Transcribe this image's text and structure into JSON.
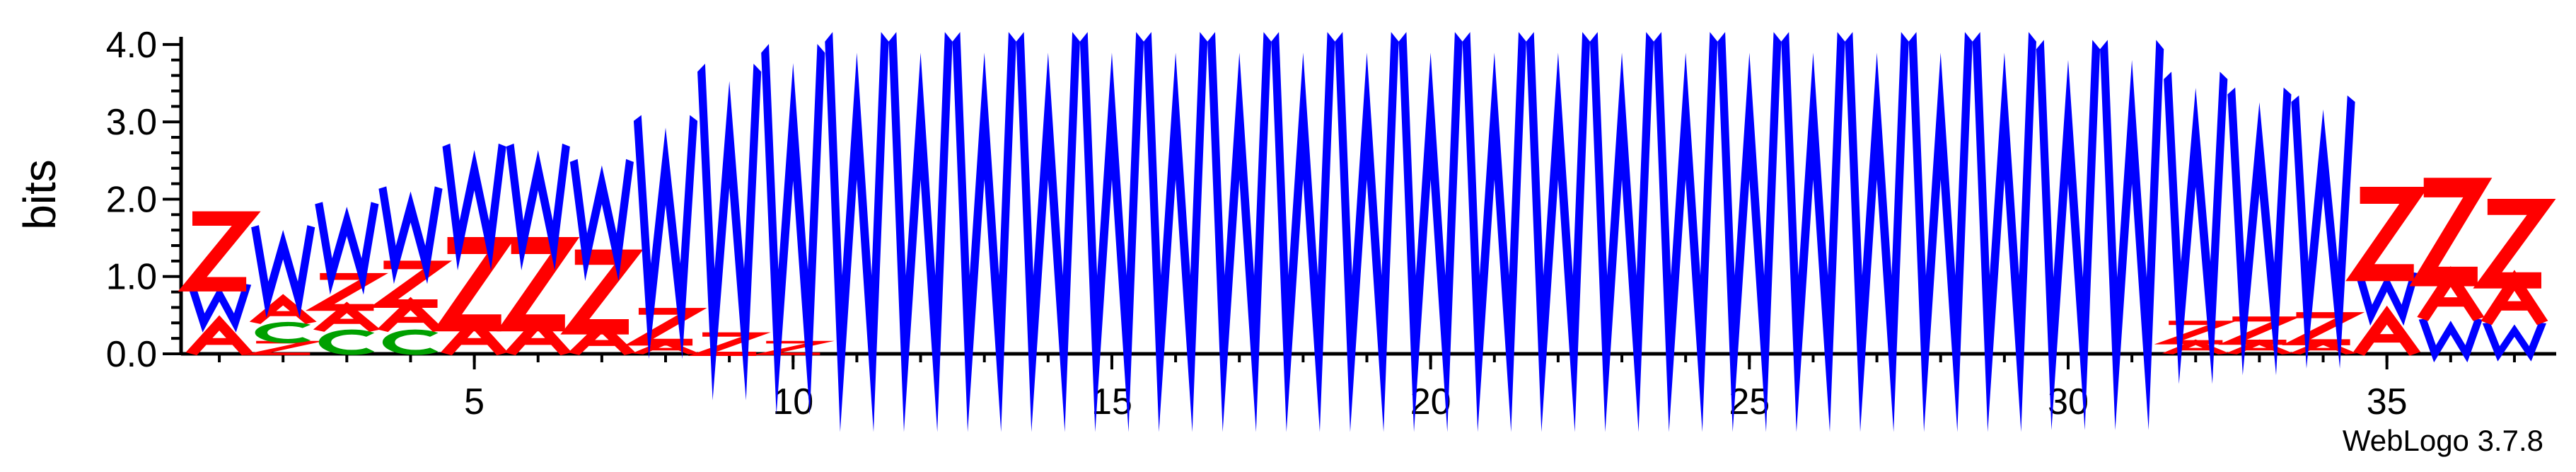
{
  "chart_data": {
    "type": "sequence-logo",
    "ylabel": "bits",
    "ylim": [
      0,
      4.1
    ],
    "yticks": [
      0.0,
      1.0,
      2.0,
      3.0,
      4.0
    ],
    "ytick_labels": [
      "0.0",
      "1.0",
      "2.0",
      "3.0",
      "4.0"
    ],
    "xticks": [
      5,
      10,
      15,
      20,
      25,
      30,
      35
    ],
    "xtick_labels": [
      "5",
      "10",
      "15",
      "20",
      "25",
      "30",
      "35"
    ],
    "positions": 37,
    "colors": {
      "W": "#0000ff",
      "Z": "#ff0000",
      "A": "#ff0000",
      "C": "#00a000",
      "other": "#ff9900",
      "misc": "#800080"
    },
    "stacks": [
      [
        [
          "A",
          0.4
        ],
        [
          "W",
          0.5
        ],
        [
          "Z",
          0.85
        ]
      ],
      [
        [
          "Z",
          0.15
        ],
        [
          "C",
          0.25
        ],
        [
          "A",
          0.3
        ],
        [
          "W",
          0.95
        ]
      ],
      [
        [
          "C",
          0.3
        ],
        [
          "A",
          0.3
        ],
        [
          "Z",
          0.4
        ],
        [
          "W",
          0.95
        ]
      ],
      [
        [
          "C",
          0.3
        ],
        [
          "A",
          0.35
        ],
        [
          "Z",
          0.5
        ],
        [
          "W",
          1.0
        ]
      ],
      [
        [
          "A",
          0.4
        ],
        [
          "Z",
          1.0
        ],
        [
          "W",
          1.3
        ]
      ],
      [
        [
          "A",
          0.4
        ],
        [
          "Z",
          1.0
        ],
        [
          "W",
          1.3
        ]
      ],
      [
        [
          "A",
          0.35
        ],
        [
          "Z",
          0.9
        ],
        [
          "W",
          1.25
        ]
      ],
      [
        [
          "A",
          0.15
        ],
        [
          "Z",
          0.4
        ],
        [
          "W",
          2.5
        ]
      ],
      [
        [
          "Z",
          0.25
        ],
        [
          "W",
          3.45
        ]
      ],
      [
        [
          "Z",
          0.15
        ],
        [
          "W",
          3.8
        ]
      ],
      [
        [
          "W",
          4.1
        ]
      ],
      [
        [
          "W",
          4.1
        ]
      ],
      [
        [
          "W",
          4.1
        ]
      ],
      [
        [
          "W",
          4.1
        ]
      ],
      [
        [
          "W",
          4.1
        ]
      ],
      [
        [
          "W",
          4.1
        ]
      ],
      [
        [
          "W",
          4.1
        ]
      ],
      [
        [
          "W",
          4.1
        ]
      ],
      [
        [
          "W",
          4.1
        ]
      ],
      [
        [
          "W",
          4.1
        ]
      ],
      [
        [
          "W",
          4.1
        ]
      ],
      [
        [
          "W",
          4.1
        ]
      ],
      [
        [
          "W",
          4.1
        ]
      ],
      [
        [
          "W",
          4.1
        ]
      ],
      [
        [
          "W",
          4.1
        ]
      ],
      [
        [
          "W",
          4.1
        ]
      ],
      [
        [
          "W",
          4.1
        ]
      ],
      [
        [
          "W",
          4.1
        ]
      ],
      [
        [
          "W",
          4.1
        ]
      ],
      [
        [
          "W",
          4.0
        ]
      ],
      [
        [
          "W",
          4.0
        ]
      ],
      [
        [
          "A",
          0.15
        ],
        [
          "Z",
          0.25
        ],
        [
          "W",
          3.2
        ]
      ],
      [
        [
          "A",
          0.15
        ],
        [
          "Z",
          0.3
        ],
        [
          "W",
          2.95
        ]
      ],
      [
        [
          "A",
          0.15
        ],
        [
          "Z",
          0.35
        ],
        [
          "W",
          2.8
        ]
      ],
      [
        [
          "A",
          0.5
        ],
        [
          "W",
          0.55
        ],
        [
          "Z",
          1.0
        ]
      ],
      [
        [
          "W",
          0.45
        ],
        [
          "A",
          0.55
        ],
        [
          "Z",
          1.15
        ]
      ],
      [
        [
          "W",
          0.4
        ],
        [
          "A",
          0.55
        ],
        [
          "Z",
          0.95
        ]
      ]
    ]
  },
  "credit": "WebLogo 3.7.8"
}
